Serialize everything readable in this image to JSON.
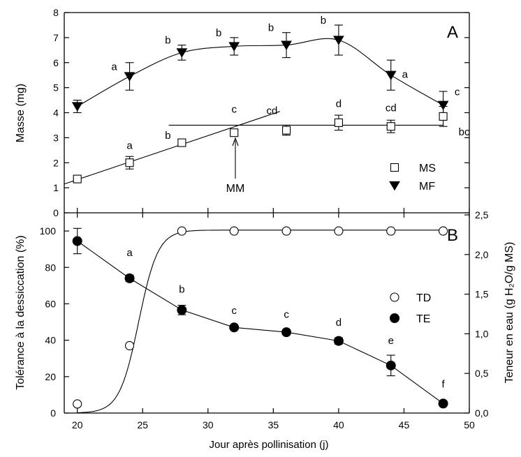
{
  "chart_data": [
    {
      "panel": "A",
      "type": "scatter",
      "panel_label": "A",
      "ylabel": "Masse (mg)",
      "xlim": [
        19,
        50
      ],
      "ylim": [
        0,
        8
      ],
      "yticks": [
        "0",
        "1",
        "2",
        "3",
        "4",
        "5",
        "6",
        "7",
        "8"
      ],
      "grid": false,
      "legend_position": "bottom-right",
      "series": [
        {
          "name": "MF",
          "marker": "triangle-down-filled",
          "x": [
            20,
            24,
            28,
            32,
            36,
            40,
            44,
            48
          ],
          "y": [
            4.25,
            5.45,
            6.4,
            6.65,
            6.7,
            6.9,
            5.5,
            4.3
          ],
          "err": [
            0.25,
            0.55,
            0.3,
            0.35,
            0.5,
            0.6,
            0.6,
            0.55
          ],
          "letters": [
            "",
            "a",
            "b",
            "b",
            "b",
            "b",
            "a",
            "c"
          ]
        },
        {
          "name": "MS",
          "marker": "square-open",
          "x": [
            20,
            24,
            28,
            32,
            36,
            40,
            44,
            48
          ],
          "y": [
            1.35,
            2.0,
            2.8,
            3.2,
            3.3,
            3.6,
            3.45,
            3.85
          ],
          "err": [
            0.05,
            0.25,
            0.1,
            0.1,
            0.2,
            0.3,
            0.25,
            0.4
          ],
          "letters": [
            "",
            "a",
            "b",
            "c",
            "cd",
            "d",
            "cd",
            "bc"
          ]
        }
      ],
      "annotation": "MM"
    },
    {
      "panel": "B",
      "type": "scatter",
      "panel_label": "B",
      "ylabel": "Tolérance à la dessiccation   (%)",
      "ylabel2": "Teneur en eau  (g H₂O/g MS)",
      "xlabel": "Jour après pollinisation (j)",
      "xlim": [
        19,
        50
      ],
      "xticks": [
        "20",
        "25",
        "30",
        "35",
        "40",
        "45",
        "50"
      ],
      "ylim": [
        0,
        110
      ],
      "yticks": [
        "0",
        "20",
        "40",
        "60",
        "80",
        "100"
      ],
      "y2lim": [
        0,
        2.5
      ],
      "y2ticks": [
        "0,0",
        "0,5",
        "1,0",
        "1,5",
        "2,0",
        "2,5"
      ],
      "grid": false,
      "legend_position": "right",
      "series": [
        {
          "name": "TD",
          "axis": "left",
          "marker": "circle-open",
          "x": [
            20,
            24,
            28,
            32,
            36,
            40,
            44,
            48
          ],
          "y": [
            5,
            37,
            100,
            100,
            100,
            100,
            100,
            100
          ]
        },
        {
          "name": "TE",
          "axis": "right",
          "marker": "circle-filled",
          "x": [
            20,
            24,
            28,
            32,
            36,
            40,
            44,
            48
          ],
          "y": [
            2.17,
            1.7,
            1.3,
            1.08,
            1.02,
            0.91,
            0.6,
            0.12
          ],
          "err": [
            0.16,
            0.04,
            0.06,
            0.02,
            0.02,
            0.04,
            0.13,
            0.02
          ],
          "letters": [
            "",
            "a",
            "b",
            "c",
            "c",
            "d",
            "e",
            "f"
          ]
        }
      ]
    }
  ]
}
